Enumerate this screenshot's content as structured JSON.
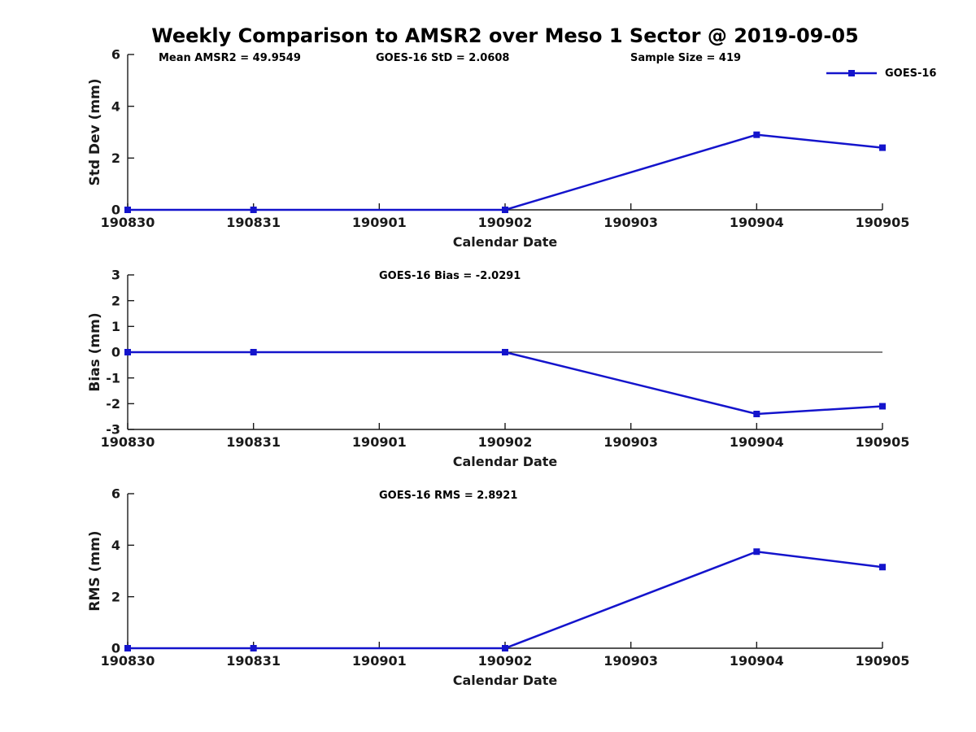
{
  "header": {
    "title": "Weekly Comparison to AMSR2 over Meso 1 Sector @ 2019-09-05"
  },
  "legend": {
    "label": "GOES-16",
    "position": "top-right-outside",
    "marker": "square"
  },
  "colors": {
    "line": "#1414cc",
    "axis": "#1a1a1a",
    "tick_text": "#1a1a1a",
    "title_text": "#000000",
    "zero_line": "#000000",
    "background": "#ffffff"
  },
  "chart_data": [
    {
      "type": "line",
      "name": "std-dev",
      "ylabel": "Std Dev (mm)",
      "xlabel": "Calendar Date",
      "categories": [
        "190830",
        "190831",
        "190901",
        "190902",
        "190903",
        "190904",
        "190905"
      ],
      "ylim": [
        0,
        6
      ],
      "yticks": [
        0,
        2,
        4,
        6
      ],
      "grid": false,
      "zero_line": false,
      "annotations": [
        "Mean AMSR2 = 49.9549",
        "GOES-16 StD = 2.0608",
        "Sample Size = 419"
      ],
      "series": [
        {
          "name": "GOES-16",
          "marker": "square",
          "x": [
            "190830",
            "190831",
            "190902",
            "190904",
            "190905"
          ],
          "values": [
            0,
            0,
            0,
            2.9,
            2.4
          ]
        }
      ]
    },
    {
      "type": "line",
      "name": "bias",
      "ylabel": "Bias (mm)",
      "xlabel": "Calendar Date",
      "categories": [
        "190830",
        "190831",
        "190901",
        "190902",
        "190903",
        "190904",
        "190905"
      ],
      "ylim": [
        -3,
        3
      ],
      "yticks": [
        3,
        2,
        1,
        0,
        -1,
        -2,
        -3
      ],
      "grid": false,
      "zero_line": true,
      "annotations": [
        "GOES-16 Bias  = -2.0291"
      ],
      "series": [
        {
          "name": "GOES-16",
          "marker": "square",
          "x": [
            "190830",
            "190831",
            "190902",
            "190904",
            "190905"
          ],
          "values": [
            0,
            0,
            0,
            -2.4,
            -2.1
          ]
        }
      ]
    },
    {
      "type": "line",
      "name": "rms",
      "ylabel": "RMS (mm)",
      "xlabel": "Calendar Date",
      "categories": [
        "190830",
        "190831",
        "190901",
        "190902",
        "190903",
        "190904",
        "190905"
      ],
      "ylim": [
        0,
        6
      ],
      "yticks": [
        0,
        2,
        4,
        6
      ],
      "grid": false,
      "zero_line": false,
      "annotations": [
        "GOES-16 RMS = 2.8921"
      ],
      "series": [
        {
          "name": "GOES-16",
          "marker": "square",
          "x": [
            "190830",
            "190831",
            "190902",
            "190904",
            "190905"
          ],
          "values": [
            0,
            0,
            0,
            3.75,
            3.15
          ]
        }
      ]
    }
  ]
}
